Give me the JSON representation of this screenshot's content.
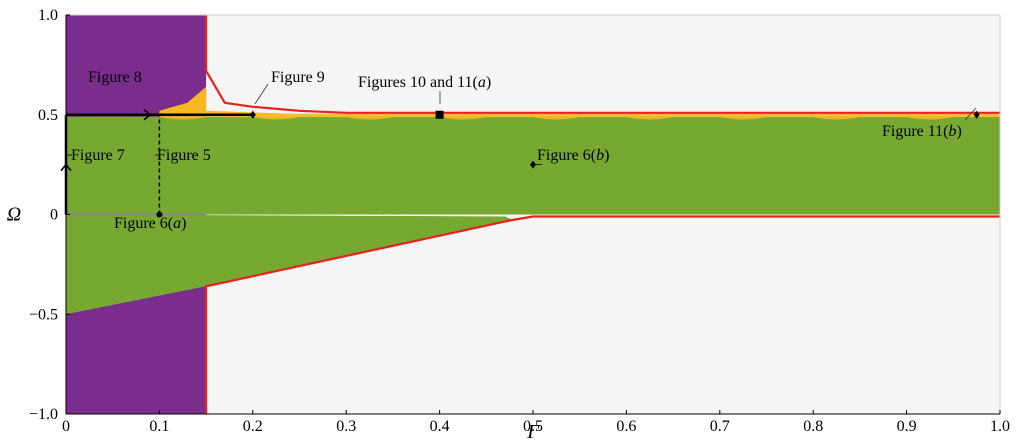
{
  "chart_data": {
    "type": "area",
    "xlabel": "Γ",
    "ylabel": "Ω",
    "xlim": [
      0,
      1.0
    ],
    "ylim": [
      -1.0,
      1.0
    ],
    "x_ticks": [
      "0",
      "0.1",
      "0.2",
      "0.3",
      "0.4",
      "0.5",
      "0.6",
      "0.7",
      "0.8",
      "0.9",
      "1.0"
    ],
    "y_ticks": [
      "−1.0",
      "−0.5",
      "0",
      "0.5",
      "1.0"
    ],
    "grid": false,
    "colors": {
      "background": "#f5f5f5",
      "purple": "#7b2d8e",
      "green": "#76a832",
      "orange": "#f5b820",
      "boundary": "#e8221b",
      "path": "#000000",
      "grey_line": "#888888"
    },
    "regions": {
      "purple": {
        "x": [
          0,
          0.15
        ],
        "y": [
          -1.0,
          1.0
        ]
      },
      "green_upper_band": {
        "x": [
          0,
          1.0
        ],
        "y": [
          0,
          0.49
        ]
      },
      "green_wedge": [
        [
          0,
          0
        ],
        [
          0.47,
          -0.01
        ],
        [
          0.48,
          -0.03
        ],
        [
          0.15,
          -0.36
        ],
        [
          0,
          -0.5
        ]
      ],
      "orange_bump": [
        [
          0.1,
          0.52
        ],
        [
          0.13,
          0.56
        ],
        [
          0.15,
          0.64
        ],
        [
          0.15,
          0.52
        ],
        [
          0.27,
          0.5
        ],
        [
          0.1,
          0.5
        ]
      ]
    },
    "boundary_curves": {
      "upper": [
        [
          0.15,
          1.0
        ],
        [
          0.15,
          0.72
        ],
        [
          0.17,
          0.56
        ],
        [
          0.2,
          0.54
        ],
        [
          0.25,
          0.52
        ],
        [
          0.3,
          0.51
        ],
        [
          0.5,
          0.51
        ],
        [
          0.7,
          0.51
        ],
        [
          1.0,
          0.51
        ]
      ],
      "lower": [
        [
          1.0,
          -0.01
        ],
        [
          0.5,
          -0.01
        ],
        [
          0.475,
          -0.03
        ],
        [
          0.15,
          -0.36
        ],
        [
          0.15,
          -1.0
        ]
      ]
    },
    "paths": [
      {
        "label": "Figure 7",
        "points": [
          [
            0,
            0
          ],
          [
            0,
            0.5
          ]
        ],
        "style": "solid",
        "arrow_at": [
          0,
          0.25
        ]
      },
      {
        "label": "Figure 8",
        "points": [
          [
            0,
            0.5
          ],
          [
            0.2,
            0.5
          ]
        ],
        "style": "solid",
        "arrow_at": [
          0.09,
          0.5
        ]
      },
      {
        "label": "Figure 5",
        "points": [
          [
            0.1,
            0
          ],
          [
            0.1,
            0.5
          ]
        ],
        "style": "dashed"
      }
    ],
    "markers": [
      {
        "label": "Figure 6(a)",
        "x": 0.1,
        "y": 0,
        "shape": "dot"
      },
      {
        "label": "Figure 9",
        "x": 0.2,
        "y": 0.5,
        "shape": "diamond"
      },
      {
        "label": "Figures 10 and 11(a)",
        "x": 0.4,
        "y": 0.5,
        "shape": "square"
      },
      {
        "label": "Figure 6(b)",
        "x": 0.5,
        "y": 0.25,
        "shape": "diamond"
      },
      {
        "label": "Figure 11(b)",
        "x": 0.975,
        "y": 0.5,
        "shape": "diamond"
      }
    ],
    "annotations": [
      {
        "text": "Figure 8",
        "parts": [
          "Figure 8"
        ]
      },
      {
        "text": "Figure 9",
        "parts": [
          "Figure 9"
        ]
      },
      {
        "text": "Figures 10 and 11(a)",
        "parts": [
          "Figures 10 and 11(",
          "a",
          ")"
        ]
      },
      {
        "text": "Figure 7",
        "parts": [
          "Figure 7"
        ]
      },
      {
        "text": "Figure 5",
        "parts": [
          "Figure 5"
        ]
      },
      {
        "text": "Figure 6(b)",
        "parts": [
          "Figure 6(",
          "b",
          ")"
        ]
      },
      {
        "text": "Figure 11(b)",
        "parts": [
          "Figure 11(",
          "b",
          ")"
        ]
      },
      {
        "text": "Figure 6(a)",
        "parts": [
          "Figure 6(",
          "a",
          ")"
        ]
      }
    ]
  }
}
